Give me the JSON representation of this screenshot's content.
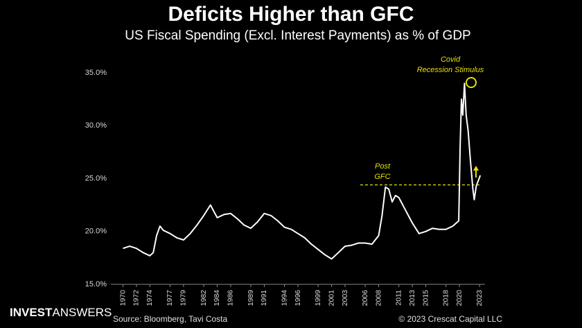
{
  "chart_data": {
    "type": "line",
    "title": "Deficits Higher than GFC",
    "subtitle": "US Fiscal Spending (Excl. Interest Payments) as % of GDP",
    "x": [
      1970,
      1971,
      1972,
      1973,
      1974,
      1974.5,
      1975,
      1975.5,
      1976,
      1977,
      1978,
      1979,
      1980,
      1981,
      1982,
      1983,
      1984,
      1985,
      1986,
      1987,
      1988,
      1989,
      1990,
      1991,
      1992,
      1993,
      1994,
      1995,
      1996,
      1997,
      1998,
      1999,
      2000,
      2001,
      2002,
      2003,
      2004,
      2005,
      2006,
      2007,
      2008,
      2008.5,
      2009,
      2009.5,
      2010,
      2010.5,
      2011,
      2012,
      2013,
      2014,
      2015,
      2016,
      2017,
      2018,
      2019,
      2019.9,
      2020.1,
      2020.3,
      2020.5,
      2020.75,
      2021,
      2021.3,
      2021.6,
      2022,
      2022.2,
      2022.5,
      2022.8,
      2023.1
    ],
    "values": [
      18.4,
      18.6,
      18.4,
      18.0,
      17.7,
      18.0,
      19.6,
      20.5,
      20.1,
      19.8,
      19.4,
      19.2,
      19.8,
      20.6,
      21.5,
      22.5,
      21.3,
      21.6,
      21.7,
      21.2,
      20.6,
      20.3,
      20.9,
      21.7,
      21.5,
      21.0,
      20.4,
      20.2,
      19.8,
      19.4,
      18.8,
      18.3,
      17.8,
      17.4,
      18.0,
      18.6,
      18.7,
      18.9,
      18.9,
      18.8,
      19.6,
      21.5,
      24.2,
      24.0,
      22.8,
      23.4,
      23.2,
      22.0,
      20.8,
      19.8,
      20.0,
      20.3,
      20.2,
      20.2,
      20.5,
      21.0,
      28.0,
      32.5,
      31.0,
      34.0,
      31.0,
      29.5,
      27.0,
      24.0,
      23.0,
      24.3,
      24.8,
      25.3
    ],
    "color": "#ffffff",
    "xlim": [
      1968.2,
      2023.8
    ],
    "xticks": [
      1970,
      1972,
      1974,
      1977,
      1979,
      1982,
      1984,
      1986,
      1989,
      1991,
      1994,
      1996,
      1999,
      2001,
      2003,
      2006,
      2008,
      2011,
      2013,
      2015,
      2018,
      2020,
      2023
    ],
    "ylim": [
      15,
      35.6
    ],
    "yticks": [
      {
        "value": 15,
        "label": "15.0%"
      },
      {
        "value": 20,
        "label": "20.0%"
      },
      {
        "value": 25,
        "label": "25.0%"
      },
      {
        "value": 30,
        "label": "30.0%"
      },
      {
        "value": 35,
        "label": "35.0%"
      }
    ],
    "reference_line": {
      "value": 24.4,
      "color": "#e8e000"
    },
    "annotations": {
      "covid": [
        "Covid",
        "Recession Stimulus"
      ],
      "gfc": [
        "Post",
        "GFC"
      ]
    },
    "source": "Source: Bloomberg, Tavi Costa",
    "copyright": "© 2023 Crescat Capital LLC",
    "brand": [
      "INVEST",
      "ANSWERS"
    ]
  }
}
